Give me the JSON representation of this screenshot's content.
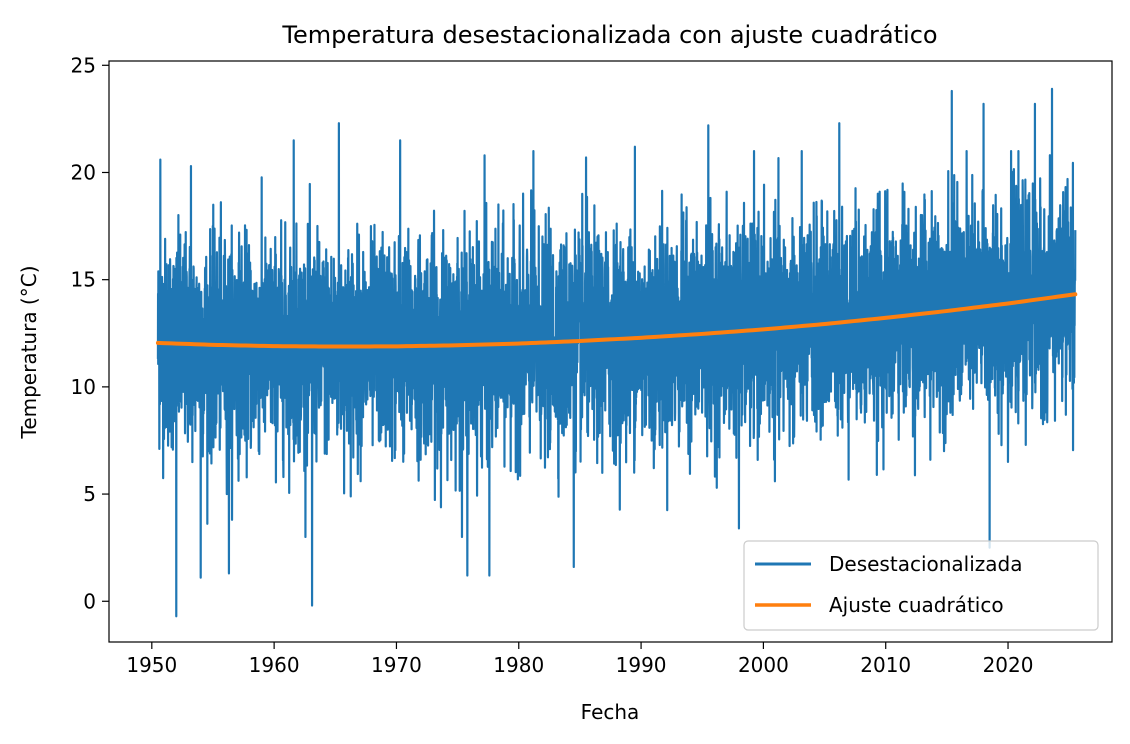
{
  "chart_data": {
    "type": "line",
    "title": "Temperatura desestacionalizada con ajuste cuadrático",
    "xlabel": "Fecha",
    "ylabel": "Temperatura (°C)",
    "xlim": [
      1946.5,
      2028.5
    ],
    "ylim": [
      -1.9,
      25.2
    ],
    "x_ticks": [
      1950,
      1960,
      1970,
      1980,
      1990,
      2000,
      2010,
      2020
    ],
    "x_tick_labels": [
      "1950",
      "1960",
      "1970",
      "1980",
      "1990",
      "2000",
      "2010",
      "2020"
    ],
    "y_ticks": [
      0,
      5,
      10,
      15,
      20,
      25
    ],
    "y_tick_labels": [
      "0",
      "5",
      "10",
      "15",
      "20",
      "25"
    ],
    "grid": false,
    "legend_position": "lower-right",
    "series": [
      {
        "name": "Desestacionalizada",
        "color": "#1f77b4",
        "x_range": [
          1950.5,
          2025.5
        ],
        "daily_baseline": "follows quadratic fit",
        "typical_band": [
          7.0,
          18.0
        ],
        "extremes": [
          {
            "x": 1950.7,
            "y": 20.6
          },
          {
            "x": 1952.0,
            "y": -0.7
          },
          {
            "x": 1953.2,
            "y": 20.3
          },
          {
            "x": 1954.0,
            "y": 1.1
          },
          {
            "x": 1956.3,
            "y": 1.3
          },
          {
            "x": 1961.6,
            "y": 21.5
          },
          {
            "x": 1963.1,
            "y": -0.2
          },
          {
            "x": 1965.3,
            "y": 22.3
          },
          {
            "x": 1970.3,
            "y": 21.5
          },
          {
            "x": 1975.8,
            "y": 1.2
          },
          {
            "x": 1977.6,
            "y": 1.2
          },
          {
            "x": 1977.2,
            "y": 20.8
          },
          {
            "x": 1981.2,
            "y": 21.0
          },
          {
            "x": 1984.5,
            "y": 1.6
          },
          {
            "x": 1985.5,
            "y": 20.7
          },
          {
            "x": 1989.5,
            "y": 21.2
          },
          {
            "x": 1995.5,
            "y": 22.2
          },
          {
            "x": 1998.0,
            "y": 3.4
          },
          {
            "x": 2006.2,
            "y": 22.3
          },
          {
            "x": 2015.4,
            "y": 23.8
          },
          {
            "x": 2018.0,
            "y": 23.2
          },
          {
            "x": 2018.5,
            "y": 2.5
          },
          {
            "x": 2022.2,
            "y": 23.2
          },
          {
            "x": 2023.6,
            "y": 23.9
          },
          {
            "x": 2020.0,
            "y": 6.5
          }
        ]
      },
      {
        "name": "Ajuste cuadrático",
        "color": "#ff7f0e",
        "x": [
          1950.5,
          1955,
          1960,
          1965,
          1970,
          1975,
          1980,
          1985,
          1990,
          1995,
          2000,
          2005,
          2010,
          2015,
          2020,
          2025.5
        ],
        "y": [
          12.05,
          11.96,
          11.9,
          11.88,
          11.89,
          11.94,
          12.02,
          12.14,
          12.29,
          12.47,
          12.68,
          12.93,
          13.22,
          13.54,
          13.89,
          14.32
        ]
      }
    ]
  }
}
